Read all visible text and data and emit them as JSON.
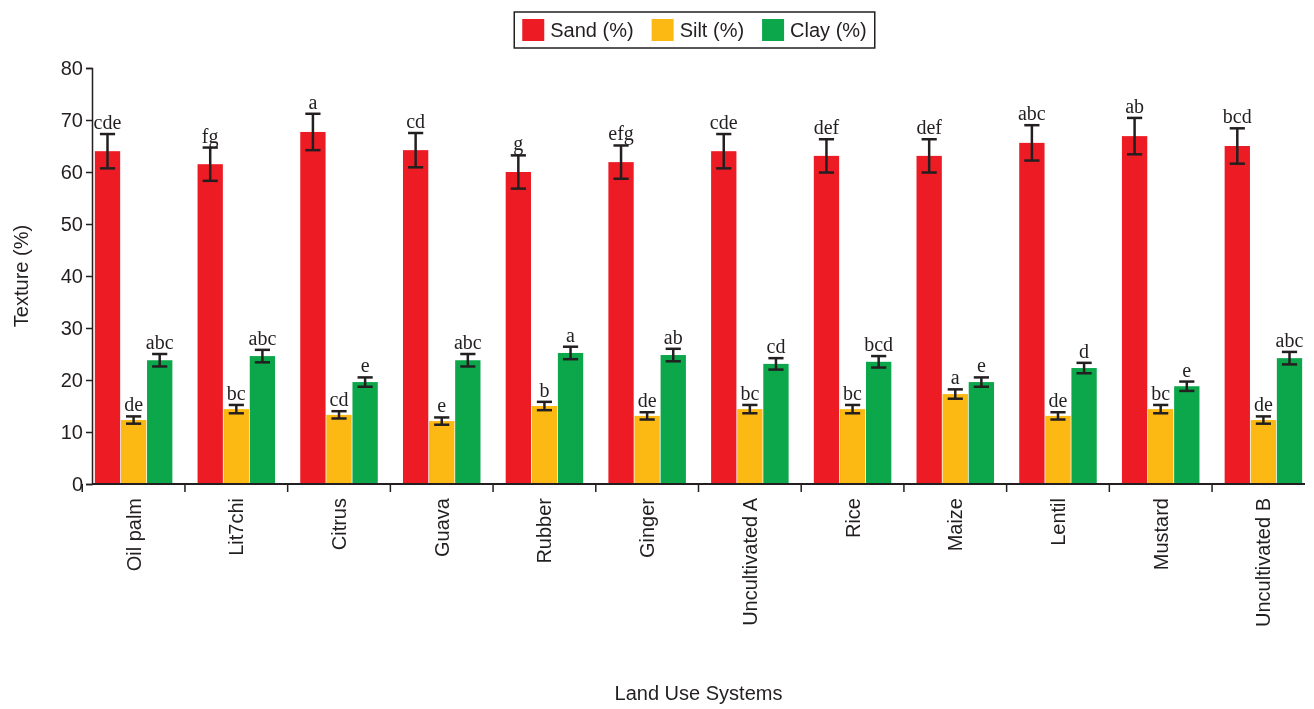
{
  "chart_data": {
    "type": "bar",
    "xlabel": "Land Use Systems",
    "ylabel": "Texture (%)",
    "categories": [
      "Oil palm",
      "Lit7chi",
      "Citrus",
      "Guava",
      "Rubber",
      "Ginger",
      "Uncultivated A",
      "Rice",
      "Maize",
      "Lentil",
      "Mustard",
      "Uncultivated B"
    ],
    "series": [
      {
        "name": "Sand (%)",
        "color": "#ed1c24",
        "values": [
          64.0,
          61.5,
          67.7,
          64.2,
          60.0,
          61.9,
          64.0,
          63.1,
          63.1,
          65.6,
          66.9,
          65.0
        ],
        "errors": [
          3.3,
          3.2,
          3.5,
          3.3,
          3.2,
          3.2,
          3.3,
          3.2,
          3.2,
          3.4,
          3.5,
          3.4
        ],
        "value_labels": [
          "cde",
          "fg",
          "a",
          "cd",
          "g",
          "efg",
          "cde",
          "def",
          "def",
          "abc",
          "ab",
          "bcd"
        ]
      },
      {
        "name": "Silt  (%)",
        "color": "#fdb913",
        "values": [
          12.3,
          14.4,
          13.3,
          12.1,
          15.0,
          13.1,
          14.4,
          14.4,
          17.3,
          13.1,
          14.4,
          12.3
        ],
        "errors": [
          0.7,
          0.8,
          0.7,
          0.7,
          0.8,
          0.7,
          0.8,
          0.8,
          0.9,
          0.7,
          0.8,
          0.7
        ],
        "value_labels": [
          "de",
          "bc",
          "cd",
          "e",
          "b",
          "de",
          "bc",
          "bc",
          "a",
          "de",
          "bc",
          "de"
        ]
      },
      {
        "name": "Clay  (%)",
        "color": "#0ca64b",
        "values": [
          23.8,
          24.6,
          19.6,
          23.8,
          25.2,
          24.8,
          23.1,
          23.5,
          19.6,
          22.3,
          18.8,
          24.2
        ],
        "errors": [
          1.2,
          1.2,
          0.9,
          1.2,
          1.2,
          1.2,
          1.1,
          1.1,
          0.9,
          1.0,
          0.9,
          1.2
        ],
        "value_labels": [
          "abc",
          "abc",
          "e",
          "abc",
          "a",
          "ab",
          "cd",
          "bcd",
          "e",
          "d",
          "e",
          "abc"
        ]
      }
    ],
    "ylim": [
      0,
      80
    ],
    "yticks": [
      0,
      10,
      20,
      30,
      40,
      50,
      60,
      70,
      80
    ],
    "legend": "top",
    "grid": false
  }
}
